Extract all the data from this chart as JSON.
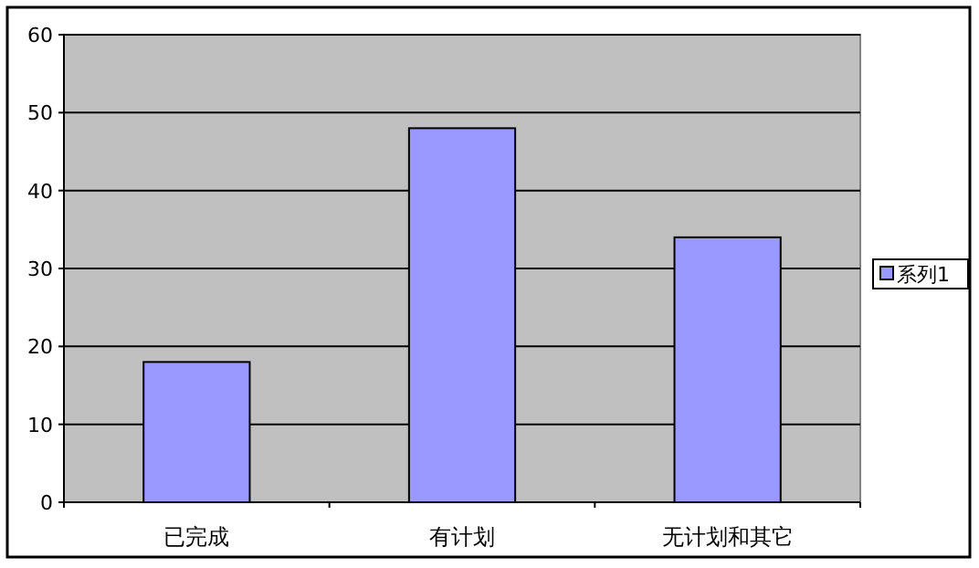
{
  "chart_data": {
    "type": "bar",
    "categories": [
      "已完成",
      "有计划",
      "无计划和其它"
    ],
    "series": [
      {
        "name": "系列1",
        "color": "#9999ff",
        "values": [
          18,
          48,
          34
        ]
      }
    ],
    "ylim": [
      0,
      60
    ],
    "yticks": [
      0,
      10,
      20,
      30,
      40,
      50,
      60
    ],
    "grid": "y",
    "legend": "right"
  }
}
